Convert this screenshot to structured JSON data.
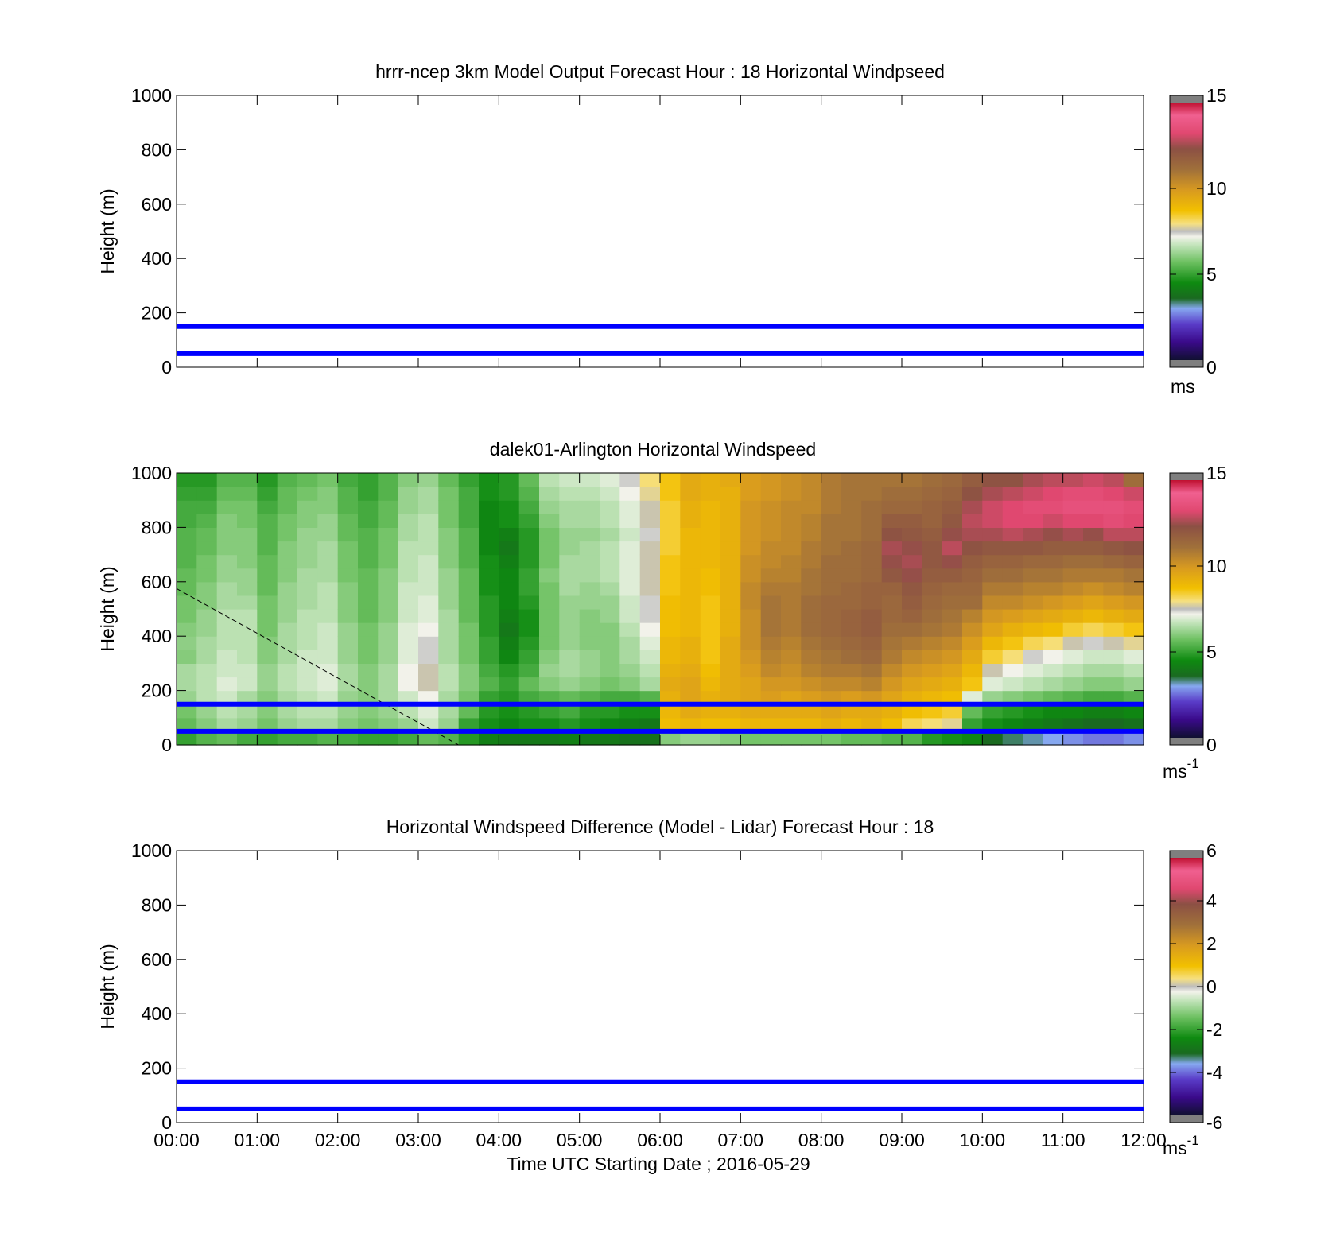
{
  "chart_data": [
    {
      "type": "heatmap",
      "title": "hrrr-ncep 3km Model Output   Forecast Hour : 18 Horizontal Windpseed",
      "ylabel": "Height (m)",
      "xlabel": "",
      "xlim": [
        0,
        12
      ],
      "ylim": [
        0,
        1000
      ],
      "y_ticks": [
        "0",
        "200",
        "400",
        "600",
        "800",
        "1000"
      ],
      "x_ticks": [],
      "reference_lines_m": [
        50,
        150
      ],
      "reference_line_color": "#0000ff",
      "colorbar": {
        "ticks": [
          "0",
          "5",
          "10",
          "15"
        ],
        "range": [
          0,
          15
        ],
        "unit": "ms"
      },
      "grid": false,
      "cells": []
    },
    {
      "type": "heatmap",
      "title": "dalek01-Arlington  Horizontal Windspeed",
      "ylabel": "Height (m)",
      "xlabel": "",
      "xlim": [
        0,
        12
      ],
      "ylim": [
        0,
        1000
      ],
      "y_ticks": [
        "0",
        "200",
        "400",
        "600",
        "800",
        "1000"
      ],
      "x_ticks": [],
      "reference_lines_m": [
        50,
        150
      ],
      "reference_line_color": "#0000ff",
      "colorbar": {
        "ticks": [
          "0",
          "5",
          "10",
          "15"
        ],
        "range": [
          0,
          15
        ],
        "unit": "ms",
        "unit_exp": "-1"
      },
      "grid": false,
      "time_columns_h": [
        0.0,
        0.25,
        0.5,
        0.75,
        1.0,
        1.25,
        1.5,
        1.75,
        2.0,
        2.25,
        2.5,
        2.75,
        3.0,
        3.25,
        3.5,
        3.75,
        4.0,
        4.25,
        4.5,
        4.75,
        5.0,
        5.25,
        5.5,
        5.75,
        6.0,
        6.25,
        6.5,
        6.75,
        7.0,
        7.25,
        7.5,
        7.75,
        8.0,
        8.25,
        8.5,
        8.75,
        9.0,
        9.25,
        9.5,
        9.75,
        10.0,
        10.25,
        10.5,
        10.75,
        11.0,
        11.25,
        11.5,
        11.75
      ],
      "height_rows_m": [
        25,
        75,
        125,
        175,
        225,
        275,
        325,
        375,
        425,
        475,
        525,
        575,
        625,
        675,
        725,
        775,
        825,
        875,
        925,
        975
      ],
      "values_ms": [
        [
          5.0,
          5.6,
          5.8,
          6.2,
          6.4,
          6.4,
          6.0,
          6.1,
          6.0,
          5.8,
          5.8,
          5.6,
          5.6,
          5.4,
          5.4,
          5.4,
          5.2,
          5.2,
          5.0,
          4.8
        ],
        [
          5.4,
          6.0,
          6.2,
          6.6,
          6.6,
          6.6,
          6.4,
          6.4,
          6.2,
          6.2,
          6.0,
          6.0,
          5.8,
          5.8,
          5.6,
          5.6,
          5.4,
          5.2,
          5.0,
          4.8
        ],
        [
          5.6,
          6.4,
          6.6,
          6.8,
          7.0,
          6.8,
          6.8,
          6.6,
          6.6,
          6.6,
          6.4,
          6.4,
          6.2,
          6.2,
          6.0,
          6.0,
          6.0,
          5.8,
          5.6,
          5.4
        ],
        [
          5.2,
          6.2,
          6.4,
          6.4,
          6.8,
          6.8,
          6.6,
          6.6,
          6.6,
          6.6,
          6.4,
          6.2,
          6.2,
          6.0,
          6.0,
          6.0,
          5.8,
          5.8,
          5.6,
          5.4
        ],
        [
          5.0,
          5.8,
          6.0,
          6.0,
          6.2,
          6.2,
          6.0,
          6.0,
          5.8,
          5.8,
          5.8,
          5.6,
          5.6,
          5.6,
          5.4,
          5.4,
          5.4,
          5.2,
          5.0,
          4.8
        ],
        [
          5.2,
          6.2,
          6.4,
          6.4,
          6.6,
          6.6,
          6.4,
          6.4,
          6.4,
          6.2,
          6.2,
          6.2,
          6.0,
          6.0,
          6.0,
          5.8,
          5.8,
          5.6,
          5.6,
          5.4
        ],
        [
          5.2,
          6.4,
          6.6,
          6.6,
          6.8,
          6.8,
          6.8,
          6.6,
          6.6,
          6.6,
          6.4,
          6.4,
          6.4,
          6.2,
          6.2,
          6.2,
          6.0,
          6.0,
          5.8,
          5.6
        ],
        [
          5.4,
          6.4,
          6.6,
          6.8,
          7.0,
          7.0,
          6.8,
          6.8,
          6.8,
          6.6,
          6.6,
          6.6,
          6.4,
          6.4,
          6.4,
          6.2,
          6.2,
          6.0,
          6.0,
          5.8
        ],
        [
          5.2,
          6.0,
          6.2,
          6.2,
          6.4,
          6.4,
          6.2,
          6.2,
          6.2,
          6.0,
          6.0,
          6.0,
          5.8,
          5.8,
          5.8,
          5.6,
          5.6,
          5.4,
          5.4,
          5.2
        ],
        [
          5.0,
          5.8,
          6.0,
          6.0,
          6.0,
          6.0,
          5.8,
          5.8,
          5.8,
          5.6,
          5.6,
          5.6,
          5.6,
          5.4,
          5.4,
          5.4,
          5.2,
          5.2,
          5.0,
          5.0
        ],
        [
          5.0,
          6.0,
          6.2,
          6.4,
          6.4,
          6.4,
          6.2,
          6.2,
          6.2,
          6.0,
          6.0,
          6.0,
          6.0,
          5.8,
          5.8,
          5.8,
          5.6,
          5.6,
          5.4,
          5.4
        ],
        [
          5.2,
          6.2,
          6.6,
          6.8,
          7.2,
          7.2,
          7.0,
          7.0,
          7.0,
          6.8,
          6.8,
          6.8,
          6.6,
          6.6,
          6.6,
          6.4,
          6.4,
          6.2,
          6.2,
          6.0
        ],
        [
          5.6,
          6.8,
          7.0,
          7.2,
          7.6,
          7.6,
          7.4,
          7.4,
          7.2,
          7.0,
          7.0,
          6.8,
          6.8,
          6.8,
          6.6,
          6.6,
          6.6,
          6.4,
          6.4,
          6.2
        ],
        [
          5.4,
          6.2,
          6.4,
          6.4,
          6.6,
          6.6,
          6.4,
          6.4,
          6.4,
          6.4,
          6.2,
          6.2,
          6.2,
          6.0,
          6.0,
          6.0,
          5.8,
          5.8,
          5.8,
          5.6
        ],
        [
          4.8,
          5.0,
          5.6,
          5.8,
          6.0,
          6.0,
          5.8,
          5.8,
          5.8,
          5.6,
          5.6,
          5.6,
          5.6,
          5.4,
          5.4,
          5.4,
          5.2,
          5.2,
          5.2,
          5.0
        ],
        [
          4.2,
          4.6,
          4.8,
          5.0,
          5.4,
          5.2,
          5.0,
          5.0,
          4.8,
          4.8,
          4.8,
          4.6,
          4.6,
          4.6,
          4.4,
          4.4,
          4.4,
          4.4,
          4.6,
          4.6
        ],
        [
          4.0,
          4.4,
          4.6,
          4.8,
          5.0,
          4.8,
          4.4,
          4.2,
          4.0,
          4.2,
          4.4,
          4.4,
          4.4,
          4.2,
          4.0,
          4.2,
          4.6,
          4.6,
          4.8,
          4.8
        ],
        [
          4.0,
          4.6,
          4.8,
          5.2,
          5.6,
          5.2,
          5.0,
          4.8,
          4.6,
          4.6,
          4.8,
          5.0,
          5.0,
          4.8,
          4.8,
          4.8,
          5.0,
          5.2,
          5.4,
          5.6
        ],
        [
          4.0,
          4.6,
          5.0,
          5.4,
          6.0,
          6.2,
          6.0,
          5.8,
          5.8,
          5.8,
          5.8,
          5.8,
          6.0,
          5.8,
          5.8,
          5.8,
          6.0,
          6.2,
          6.4,
          6.6
        ],
        [
          4.2,
          4.8,
          5.2,
          5.6,
          6.2,
          6.4,
          6.4,
          6.2,
          6.2,
          6.2,
          6.2,
          6.4,
          6.4,
          6.4,
          6.2,
          6.2,
          6.4,
          6.4,
          6.6,
          6.8
        ],
        [
          4.0,
          4.6,
          4.8,
          5.4,
          6.0,
          6.2,
          6.2,
          6.0,
          6.0,
          6.0,
          6.2,
          6.2,
          6.4,
          6.4,
          6.4,
          6.2,
          6.4,
          6.4,
          6.6,
          6.8
        ],
        [
          4.0,
          4.4,
          4.8,
          5.2,
          5.8,
          6.0,
          6.0,
          6.0,
          6.0,
          6.2,
          6.2,
          6.4,
          6.6,
          6.6,
          6.6,
          6.4,
          6.6,
          6.6,
          6.8,
          7.0
        ],
        [
          3.8,
          4.2,
          4.6,
          5.2,
          6.0,
          6.2,
          6.4,
          6.4,
          6.6,
          6.8,
          6.8,
          7.0,
          7.0,
          7.0,
          7.0,
          6.8,
          7.0,
          7.0,
          7.2,
          7.4
        ],
        [
          3.8,
          4.0,
          4.6,
          5.4,
          6.4,
          6.6,
          6.8,
          7.0,
          7.2,
          7.4,
          7.4,
          7.6,
          7.6,
          7.6,
          7.6,
          7.4,
          7.6,
          7.6,
          7.8,
          8.0
        ],
        [
          6.0,
          8.8,
          9.0,
          9.2,
          9.4,
          9.2,
          9.0,
          9.0,
          8.8,
          8.8,
          8.8,
          8.6,
          8.6,
          8.6,
          8.4,
          8.4,
          8.4,
          8.4,
          8.6,
          8.6
        ],
        [
          6.2,
          9.0,
          9.4,
          9.6,
          9.6,
          9.4,
          9.2,
          9.2,
          9.0,
          9.0,
          9.0,
          9.0,
          9.0,
          9.0,
          9.0,
          9.0,
          9.2,
          9.2,
          9.4,
          9.4
        ],
        [
          6.2,
          8.8,
          9.2,
          9.2,
          9.0,
          8.8,
          8.6,
          8.6,
          8.6,
          8.6,
          8.6,
          8.8,
          8.8,
          9.0,
          9.0,
          9.0,
          9.0,
          9.0,
          9.2,
          9.2
        ],
        [
          6.0,
          8.8,
          9.2,
          9.4,
          9.4,
          9.4,
          9.4,
          9.4,
          9.2,
          9.2,
          9.2,
          9.2,
          9.2,
          9.2,
          9.2,
          9.2,
          9.2,
          9.2,
          9.2,
          9.4
        ],
        [
          5.8,
          9.0,
          9.4,
          9.6,
          9.6,
          9.8,
          10.0,
          10.2,
          10.2,
          10.2,
          10.4,
          10.4,
          10.2,
          10.2,
          10.0,
          10.0,
          10.0,
          10.0,
          9.8,
          9.8
        ],
        [
          5.8,
          9.0,
          9.4,
          9.8,
          10.0,
          10.4,
          10.6,
          10.8,
          11.0,
          11.0,
          11.0,
          10.8,
          10.6,
          10.4,
          10.4,
          10.2,
          10.2,
          10.2,
          10.0,
          10.0
        ],
        [
          5.8,
          9.0,
          9.4,
          9.6,
          10.0,
          10.2,
          10.4,
          10.6,
          10.8,
          10.8,
          10.8,
          10.8,
          10.6,
          10.6,
          10.4,
          10.4,
          10.4,
          10.4,
          10.2,
          10.2
        ],
        [
          5.8,
          9.0,
          9.4,
          9.8,
          10.2,
          10.6,
          10.8,
          11.0,
          11.2,
          11.2,
          11.2,
          11.0,
          11.0,
          10.8,
          10.8,
          10.6,
          10.6,
          10.4,
          10.4,
          10.4
        ],
        [
          5.8,
          9.2,
          9.6,
          10.0,
          10.4,
          10.8,
          11.0,
          11.2,
          11.4,
          11.4,
          11.4,
          11.2,
          11.2,
          11.2,
          11.0,
          11.0,
          11.0,
          10.8,
          10.8,
          10.8
        ],
        [
          5.6,
          9.0,
          9.4,
          9.8,
          10.4,
          10.8,
          11.2,
          11.4,
          11.6,
          11.6,
          11.4,
          11.4,
          11.2,
          11.2,
          11.2,
          11.0,
          11.0,
          11.0,
          11.0,
          11.0
        ],
        [
          5.6,
          9.2,
          9.4,
          10.0,
          10.6,
          11.0,
          11.4,
          11.6,
          11.8,
          11.8,
          11.6,
          11.6,
          11.4,
          11.4,
          11.4,
          11.2,
          11.2,
          11.2,
          11.0,
          11.0
        ],
        [
          5.4,
          8.8,
          9.2,
          9.6,
          10.0,
          10.4,
          10.8,
          11.0,
          11.2,
          11.4,
          11.4,
          11.6,
          12.0,
          12.4,
          12.6,
          12.2,
          11.8,
          11.4,
          11.2,
          11.0
        ],
        [
          5.4,
          8.2,
          8.8,
          9.2,
          9.6,
          10.0,
          10.4,
          10.8,
          11.2,
          11.6,
          11.8,
          12.0,
          12.4,
          12.6,
          12.4,
          12.0,
          11.8,
          11.4,
          11.2,
          11.0
        ],
        [
          4.8,
          8.0,
          8.6,
          9.0,
          9.4,
          9.8,
          10.2,
          10.6,
          11.0,
          11.2,
          11.4,
          11.6,
          11.8,
          12.0,
          12.0,
          11.8,
          11.6,
          11.6,
          11.4,
          11.2
        ],
        [
          4.6,
          7.8,
          8.4,
          8.8,
          9.2,
          9.6,
          10.0,
          10.4,
          10.8,
          11.0,
          11.2,
          11.4,
          11.8,
          12.4,
          12.8,
          12.4,
          12.0,
          11.8,
          11.6,
          11.4
        ],
        [
          4.4,
          5.0,
          5.6,
          7.0,
          8.6,
          9.0,
          9.4,
          9.8,
          10.2,
          10.6,
          11.2,
          11.4,
          11.6,
          11.8,
          12.2,
          12.6,
          12.8,
          12.6,
          12.2,
          11.8
        ],
        [
          3.6,
          4.6,
          5.0,
          6.2,
          7.0,
          7.6,
          8.4,
          9.0,
          9.6,
          10.0,
          10.4,
          10.8,
          11.2,
          11.6,
          12.0,
          12.6,
          13.0,
          13.0,
          12.6,
          12.2
        ],
        [
          3.4,
          4.4,
          4.8,
          6.0,
          6.8,
          7.2,
          8.0,
          8.6,
          9.2,
          9.8,
          10.4,
          10.8,
          11.2,
          11.6,
          12.0,
          12.8,
          13.2,
          13.2,
          12.8,
          12.2
        ],
        [
          3.2,
          4.2,
          4.6,
          5.8,
          6.6,
          7.0,
          7.4,
          8.2,
          9.0,
          9.6,
          10.2,
          10.6,
          11.0,
          11.4,
          12.0,
          12.6,
          13.2,
          13.4,
          13.0,
          12.6
        ],
        [
          3.0,
          4.0,
          4.4,
          5.6,
          6.4,
          6.8,
          7.2,
          8.0,
          8.8,
          9.4,
          10.0,
          10.6,
          11.0,
          11.4,
          11.8,
          12.4,
          13.0,
          13.4,
          13.2,
          12.8
        ],
        [
          2.8,
          3.8,
          4.4,
          5.4,
          6.2,
          6.6,
          7.0,
          7.6,
          8.4,
          9.2,
          9.8,
          10.4,
          10.8,
          11.2,
          11.8,
          12.6,
          13.2,
          13.6,
          13.4,
          12.8
        ],
        [
          2.6,
          3.6,
          4.2,
          5.2,
          6.0,
          6.4,
          6.8,
          7.4,
          8.2,
          9.0,
          9.6,
          10.2,
          10.8,
          11.2,
          11.8,
          12.4,
          13.2,
          13.6,
          13.4,
          13.0
        ],
        [
          2.6,
          3.6,
          4.2,
          5.2,
          6.0,
          6.4,
          6.8,
          7.6,
          8.4,
          9.2,
          9.8,
          10.4,
          10.8,
          11.4,
          12.0,
          12.8,
          13.4,
          13.6,
          13.2,
          12.8
        ],
        [
          2.8,
          3.8,
          4.4,
          5.4,
          6.2,
          6.6,
          7.0,
          7.8,
          8.6,
          9.4,
          10.0,
          10.6,
          11.0,
          11.6,
          12.2,
          12.8,
          13.2,
          13.4,
          13.0,
          11.2
        ]
      ]
    },
    {
      "type": "heatmap",
      "title": "Horizontal Windspeed Difference (Model - Lidar) Forecast Hour : 18",
      "ylabel": "Height (m)",
      "xlabel": "Time UTC  Starting Date ; 2016-05-29",
      "xlim": [
        0,
        12
      ],
      "ylim": [
        0,
        1000
      ],
      "y_ticks": [
        "0",
        "200",
        "400",
        "600",
        "800",
        "1000"
      ],
      "x_ticks": [
        "00:00",
        "01:00",
        "02:00",
        "03:00",
        "04:00",
        "05:00",
        "06:00",
        "07:00",
        "08:00",
        "09:00",
        "10:00",
        "11:00",
        "12:00"
      ],
      "reference_lines_m": [
        50,
        150
      ],
      "reference_line_color": "#0000ff",
      "colorbar": {
        "ticks": [
          "-6",
          "-4",
          "-2",
          "0",
          "2",
          "4",
          "6"
        ],
        "range": [
          -6,
          6
        ],
        "unit": "ms",
        "unit_exp": "-1"
      },
      "grid": false,
      "cells": []
    }
  ],
  "dashed_line": {
    "x_h": [
      0,
      3.5
    ],
    "y_m": [
      575,
      0
    ]
  }
}
